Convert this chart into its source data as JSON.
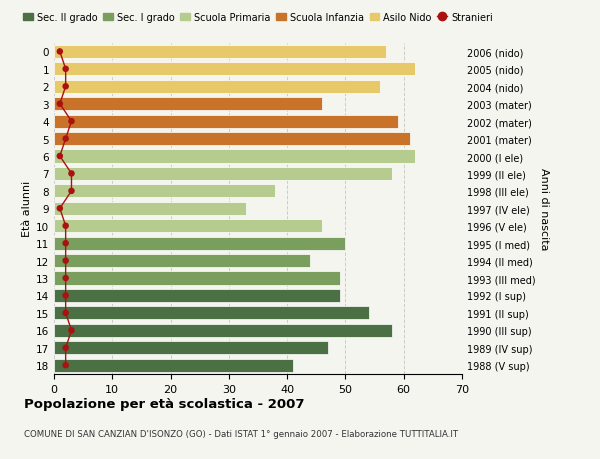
{
  "ages": [
    18,
    17,
    16,
    15,
    14,
    13,
    12,
    11,
    10,
    9,
    8,
    7,
    6,
    5,
    4,
    3,
    2,
    1,
    0
  ],
  "years": [
    "1988 (V sup)",
    "1989 (IV sup)",
    "1990 (III sup)",
    "1991 (II sup)",
    "1992 (I sup)",
    "1993 (III med)",
    "1994 (II med)",
    "1995 (I med)",
    "1996 (V ele)",
    "1997 (IV ele)",
    "1998 (III ele)",
    "1999 (II ele)",
    "2000 (I ele)",
    "2001 (mater)",
    "2002 (mater)",
    "2003 (mater)",
    "2004 (nido)",
    "2005 (nido)",
    "2006 (nido)"
  ],
  "bar_values": [
    41,
    47,
    58,
    54,
    49,
    49,
    44,
    50,
    46,
    33,
    38,
    58,
    62,
    61,
    59,
    46,
    56,
    62,
    57
  ],
  "bar_colors": [
    "#4a7043",
    "#4a7043",
    "#4a7043",
    "#4a7043",
    "#4a7043",
    "#7a9e5e",
    "#7a9e5e",
    "#7a9e5e",
    "#b5cc8e",
    "#b5cc8e",
    "#b5cc8e",
    "#b5cc8e",
    "#b5cc8e",
    "#c8722a",
    "#c8722a",
    "#c8722a",
    "#e8c96a",
    "#e8c96a",
    "#e8c96a"
  ],
  "stranieri_values": [
    2,
    2,
    3,
    2,
    2,
    2,
    2,
    2,
    2,
    1,
    3,
    3,
    1,
    2,
    3,
    1,
    2,
    2,
    1
  ],
  "stranieri_color": "#aa1111",
  "legend_labels": [
    "Sec. II grado",
    "Sec. I grado",
    "Scuola Primaria",
    "Scuola Infanzia",
    "Asilo Nido",
    "Stranieri"
  ],
  "legend_colors": [
    "#4a7043",
    "#7a9e5e",
    "#b5cc8e",
    "#c8722a",
    "#e8c96a",
    "#aa1111"
  ],
  "ylabel_left": "Età alunni",
  "ylabel_right": "Anni di nascita",
  "xlim": [
    0,
    70
  ],
  "xticks": [
    0,
    10,
    20,
    30,
    40,
    50,
    60,
    70
  ],
  "title": "Popolazione per età scolastica - 2007",
  "subtitle": "COMUNE DI SAN CANZIAN D'ISONZO (GO) - Dati ISTAT 1° gennaio 2007 - Elaborazione TUTTITALIA.IT",
  "bg_color": "#f5f5f0",
  "grid_color": "#cccccc"
}
